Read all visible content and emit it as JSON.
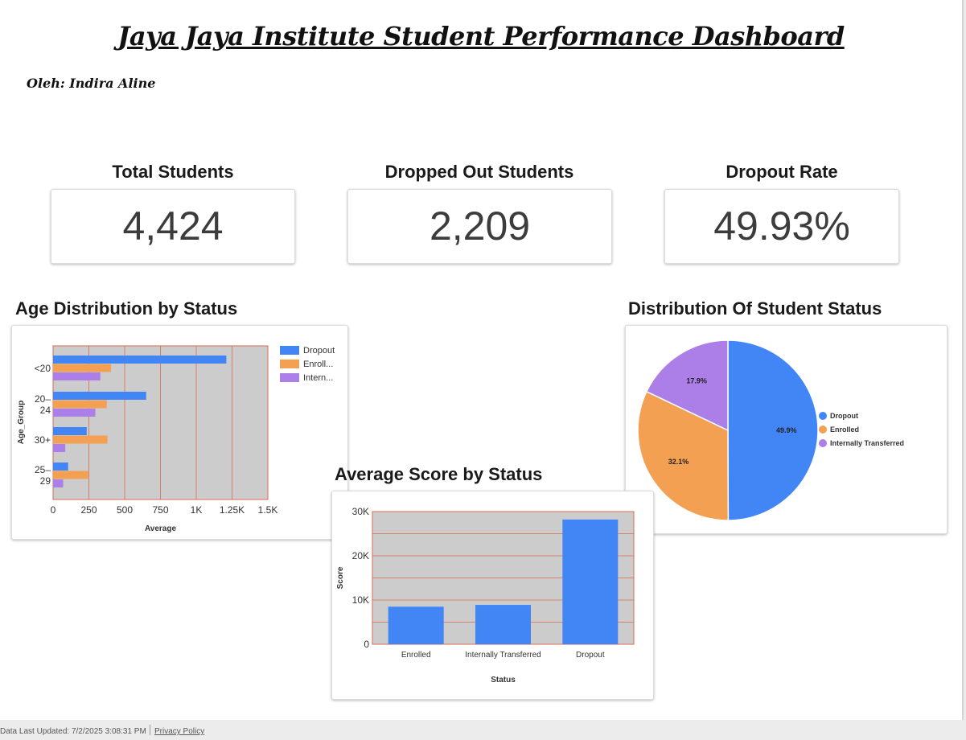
{
  "header": {
    "title": "Jaya Jaya Institute Student Performance Dashboard",
    "author": "Oleh: Indira Aline"
  },
  "kpis": [
    {
      "label": "Total Students",
      "value": "4,424"
    },
    {
      "label": "Dropped Out Students",
      "value": "2,209"
    },
    {
      "label": "Dropout Rate",
      "value": "49.93%"
    }
  ],
  "colors": {
    "dropout": "#4285f4",
    "enrolled": "#f4a053",
    "internally_transferred": "#ab7ee8",
    "plot_bg": "#cccccc",
    "grid": "#d86b51"
  },
  "charts": {
    "age": {
      "heading": "Age Distribution by Status"
    },
    "pie": {
      "heading": "Distribution Of Student Status"
    },
    "score": {
      "heading": "Average Score by Status"
    }
  },
  "chart_data": [
    {
      "type": "bar",
      "orientation": "horizontal",
      "title": "Age Distribution by Status",
      "xlabel": "Average",
      "ylabel": "Age_Group",
      "categories": [
        "<20",
        "20–24",
        "30+",
        "25–29"
      ],
      "series": [
        {
          "name": "Dropout",
          "legend_label": "Dropout",
          "values": [
            1210,
            650,
            235,
            105
          ]
        },
        {
          "name": "Enrolled",
          "legend_label": "Enroll...",
          "values": [
            405,
            375,
            380,
            245
          ]
        },
        {
          "name": "Internally Transferred",
          "legend_label": "Intern...",
          "values": [
            330,
            295,
            85,
            70
          ]
        }
      ],
      "xlim": [
        0,
        1500
      ],
      "xticks": [
        "0",
        "250",
        "500",
        "750",
        "1K",
        "1.25K",
        "1.5K"
      ],
      "grid": true,
      "legend": "right"
    },
    {
      "type": "bar",
      "title": "Average Score by Status",
      "xlabel": "Status",
      "ylabel": "Score",
      "categories": [
        "Enrolled",
        "Internally Transferred",
        "Dropout"
      ],
      "values": [
        8500,
        8900,
        28200
      ],
      "ylim": [
        0,
        30000
      ],
      "yticks": [
        "0",
        "10K",
        "20K",
        "30K"
      ],
      "grid": true
    },
    {
      "type": "pie",
      "title": "Distribution Of Student Status",
      "slices": [
        {
          "name": "Dropout",
          "value": 49.9,
          "label": "49.9%"
        },
        {
          "name": "Enrolled",
          "value": 32.1,
          "label": "32.1%"
        },
        {
          "name": "Internally Transferred",
          "value": 17.9,
          "label": "17.9%"
        }
      ],
      "legend": "right"
    }
  ],
  "footer": {
    "last_updated": "Data Last Updated: 7/2/2025 3:08:31 PM",
    "privacy_link": "Privacy Policy"
  }
}
